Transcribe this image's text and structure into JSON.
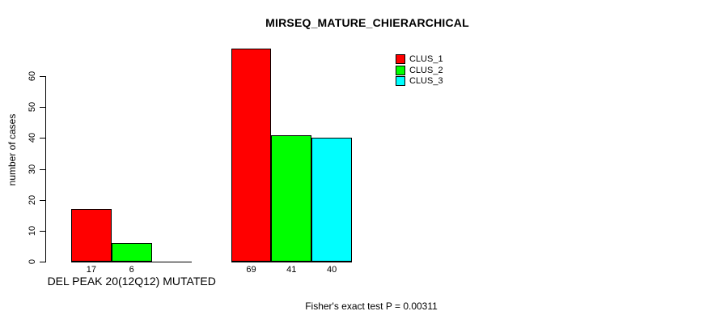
{
  "chart_data": {
    "type": "bar",
    "title": "MIRSEQ_MATURE_CHIERARCHICAL",
    "ylabel": "number of cases",
    "ylim": [
      0,
      60
    ],
    "yticks": [
      0,
      10,
      20,
      30,
      40,
      50,
      60
    ],
    "grid": false,
    "legend_position": "top-right",
    "annotation": "Fisher's exact test P = 0.00311",
    "categories": [
      "DEL PEAK 20(12Q12) MUTATED",
      ""
    ],
    "series": [
      {
        "name": "CLUS_1",
        "color": "#ff0000",
        "values": [
          17,
          69
        ]
      },
      {
        "name": "CLUS_2",
        "color": "#00ff00",
        "values": [
          6,
          41
        ]
      },
      {
        "name": "CLUS_3",
        "color": "#00ffff",
        "values": [
          0,
          40
        ]
      }
    ],
    "bar_value_labels": [
      [
        "17",
        "6",
        ""
      ],
      [
        "69",
        "41",
        "40"
      ]
    ],
    "colors": {
      "axis": "#000000",
      "text": "#000000",
      "background": "#ffffff"
    }
  }
}
